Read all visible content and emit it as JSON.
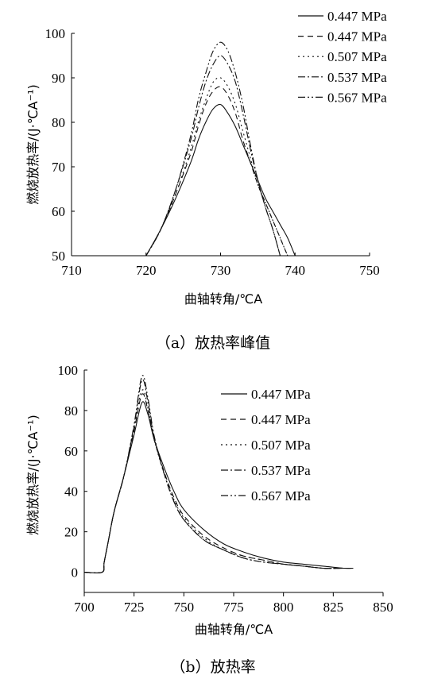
{
  "chart_data": [
    {
      "type": "line",
      "caption": "（a）放热率峰值",
      "xlabel": "曲轴转角/℃A",
      "ylabel": "燃烧放热率/(J·℃A⁻¹)",
      "xlim": [
        710,
        750
      ],
      "ylim": [
        50,
        100
      ],
      "xticks": [
        "710",
        "720",
        "730",
        "740",
        "750"
      ],
      "yticks": [
        "50",
        "60",
        "70",
        "80",
        "90",
        "100"
      ],
      "legend_position": "top-right",
      "series": [
        {
          "name": "0.447 MPa",
          "dash": "",
          "x": [
            720,
            722,
            724,
            726,
            727,
            728,
            729,
            730,
            731,
            732,
            733,
            734,
            735,
            736,
            737,
            738,
            739,
            740
          ],
          "y": [
            50,
            56,
            63,
            71,
            76,
            80,
            83,
            84,
            82,
            79,
            75,
            71,
            67,
            63,
            60,
            57,
            54,
            50
          ]
        },
        {
          "name": "0.447 MPa",
          "dash": "7,5",
          "x": [
            720,
            722,
            724,
            726,
            727,
            728,
            729,
            730,
            731,
            732,
            733,
            734,
            735,
            736,
            737,
            738,
            739
          ],
          "y": [
            50,
            56,
            64,
            73,
            79,
            84,
            87,
            88,
            86,
            82,
            76,
            71,
            66,
            62,
            58,
            54,
            50
          ]
        },
        {
          "name": "0.507 MPa",
          "dash": "2,4",
          "x": [
            720,
            722,
            724,
            726,
            727,
            728,
            729,
            730,
            731,
            732,
            733,
            734,
            735,
            736,
            737,
            738,
            739
          ],
          "y": [
            50,
            56,
            64,
            74,
            80,
            85,
            89,
            90,
            88,
            84,
            78,
            72,
            66,
            62,
            58,
            54,
            50
          ]
        },
        {
          "name": "0.537 MPa",
          "dash": "9,3,2,3",
          "x": [
            720,
            722,
            724,
            726,
            727,
            728,
            729,
            730,
            731,
            732,
            733,
            734,
            735,
            736,
            737,
            738
          ],
          "y": [
            50,
            56,
            65,
            76,
            83,
            89,
            93,
            95,
            93,
            89,
            82,
            74,
            67,
            61,
            56,
            50
          ]
        },
        {
          "name": "0.567 MPa",
          "dash": "9,3,2,3,2,3",
          "x": [
            720,
            722,
            724,
            726,
            727,
            728,
            729,
            730,
            731,
            732,
            733,
            734,
            735,
            736,
            737,
            738
          ],
          "y": [
            50,
            56,
            65,
            77,
            85,
            91,
            96,
            98,
            96,
            91,
            84,
            75,
            67,
            61,
            56,
            50
          ]
        }
      ]
    },
    {
      "type": "line",
      "caption": "（b）放热率",
      "xlabel": "曲轴转角/℃A",
      "ylabel": "燃烧放热率/(J·℃A⁻¹)",
      "xlim": [
        700,
        850
      ],
      "ylim": [
        -10,
        100
      ],
      "xticks": [
        "700",
        "725",
        "750",
        "775",
        "800",
        "825",
        "850"
      ],
      "yticks": [
        "0",
        "20",
        "40",
        "60",
        "80",
        "100"
      ],
      "legend_position": "center-right",
      "series": [
        {
          "name": "0.447 MPa",
          "dash": "",
          "x": [
            700,
            709,
            710,
            712,
            715,
            720,
            725,
            729,
            732,
            735,
            740,
            745,
            750,
            760,
            770,
            780,
            790,
            800,
            810,
            820,
            830,
            835
          ],
          "y": [
            0,
            0,
            5,
            15,
            30,
            48,
            68,
            84,
            78,
            66,
            52,
            40,
            31,
            21,
            14,
            10,
            7,
            5,
            4,
            3,
            2,
            2
          ]
        },
        {
          "name": "0.447 MPa",
          "dash": "7,5",
          "x": [
            700,
            709,
            710,
            712,
            715,
            720,
            725,
            729,
            732,
            735,
            740,
            745,
            750,
            760,
            770,
            780,
            790,
            800,
            810,
            820,
            830,
            835
          ],
          "y": [
            0,
            0,
            5,
            15,
            30,
            48,
            70,
            88,
            80,
            66,
            50,
            37,
            28,
            18,
            12,
            8,
            6,
            4,
            3,
            2,
            2,
            2
          ]
        },
        {
          "name": "0.507 MPa",
          "dash": "2,4",
          "x": [
            700,
            709,
            710,
            712,
            715,
            720,
            725,
            729,
            732,
            735,
            740,
            745,
            750,
            760,
            770,
            780,
            790,
            800,
            810,
            820,
            830,
            835
          ],
          "y": [
            0,
            0,
            5,
            15,
            30,
            48,
            71,
            90,
            81,
            66,
            49,
            36,
            27,
            17,
            11,
            8,
            6,
            4,
            3,
            2,
            2,
            2
          ]
        },
        {
          "name": "0.537 MPa",
          "dash": "9,3,2,3",
          "x": [
            700,
            709,
            710,
            712,
            715,
            720,
            725,
            729,
            732,
            735,
            740,
            745,
            750,
            760,
            770,
            780,
            790,
            800,
            810,
            820,
            830,
            835
          ],
          "y": [
            0,
            0,
            5,
            15,
            30,
            48,
            72,
            95,
            84,
            67,
            49,
            35,
            26,
            16,
            11,
            7,
            5,
            4,
            3,
            2,
            2,
            2
          ]
        },
        {
          "name": "0.567 MPa",
          "dash": "9,3,2,3,2,3",
          "x": [
            700,
            709,
            710,
            712,
            715,
            720,
            725,
            729,
            732,
            735,
            740,
            745,
            750,
            760,
            770,
            780,
            790,
            800,
            810,
            820,
            830,
            835
          ],
          "y": [
            0,
            0,
            5,
            15,
            30,
            48,
            73,
            97,
            86,
            68,
            49,
            35,
            26,
            16,
            11,
            7,
            5,
            4,
            3,
            2,
            2,
            2
          ]
        }
      ]
    }
  ]
}
